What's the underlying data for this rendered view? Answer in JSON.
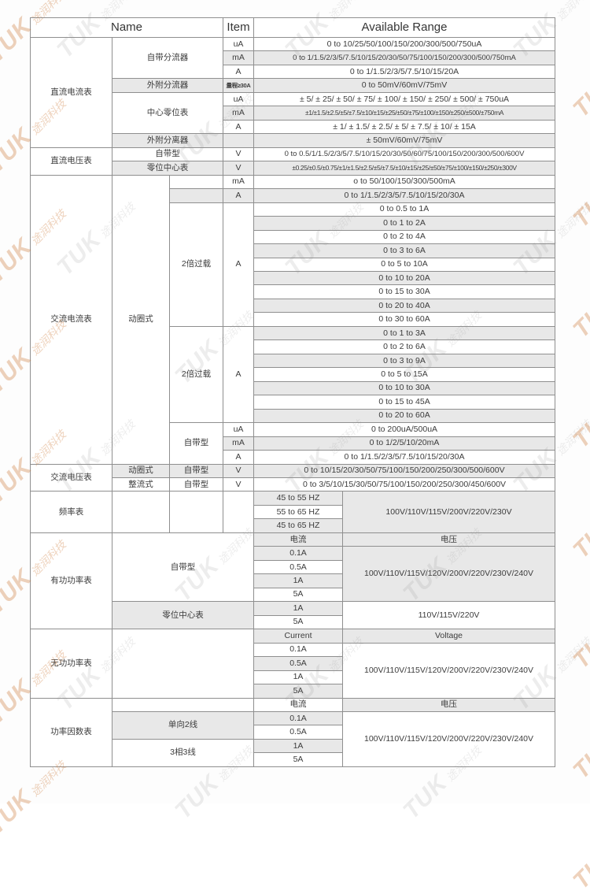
{
  "colors": {
    "shade": "#e8e8e8",
    "border": "#8f8f8f",
    "text": "#3c3c3c",
    "watermark_grey": "rgba(140,140,140,0.16)",
    "watermark_orange": "rgba(202,116,48,0.32)"
  },
  "watermark": {
    "brand": "TUK",
    "cn": "途润科技"
  },
  "table": {
    "header": [
      {
        "t": "Name",
        "span": 3
      },
      {
        "t": "Item",
        "span": 1
      },
      {
        "t": "Available Range",
        "span": 2
      }
    ],
    "rows": [
      [
        {
          "t": "直流电流表",
          "rows": 8
        },
        {
          "t": "自带分流器",
          "span": 2,
          "rows": 3
        },
        {
          "t": "uA"
        },
        {
          "t": "0 to 10/25/50/100/150/200/300/500/750uA",
          "span": 2
        }
      ],
      [
        {
          "t": "mA",
          "g": 1
        },
        {
          "t": "0 to 1/1.5/2/3/5/7.5/10/15/20/30/50/75/100/150/200/300/500/750mA",
          "span": 2,
          "g": 1,
          "cls": "sm"
        }
      ],
      [
        {
          "t": "A"
        },
        {
          "t": "0 to 1/1.5/2/3/5/7.5/10/15/20A",
          "span": 2
        }
      ],
      [
        {
          "t": "外附分流器",
          "span": 2,
          "g": 1
        },
        {
          "t": "量程≥30A",
          "g": 1,
          "cls": "tiny"
        },
        {
          "t": "0 to 50mV/60mV/75mV",
          "span": 2,
          "g": 1
        }
      ],
      [
        {
          "t": "中心零位表",
          "span": 2,
          "rows": 3
        },
        {
          "t": "uA"
        },
        {
          "t": "± 5/ ± 25/ ± 50/ ± 75/ ± 100/ ± 150/ ± 250/ ± 500/ ± 750uA",
          "span": 2
        }
      ],
      [
        {
          "t": "mA",
          "g": 1
        },
        {
          "t": "±1/±1.5/±2.5/±5/±7.5/±10/±15/±25/±50/±75/±100/±150/±250/±500/±750mA",
          "span": 2,
          "g": 1,
          "cls": "xs"
        }
      ],
      [
        {
          "t": "A"
        },
        {
          "t": "± 1/ ± 1.5/ ± 2.5/ ± 5/ ± 7.5/ ± 10/ ± 15A",
          "span": 2
        }
      ],
      [
        {
          "t": "外附分离器",
          "span": 2,
          "g": 1
        },
        {
          "t": "",
          "g": 1
        },
        {
          "t": "± 50mV/60mV/75mV",
          "span": 2,
          "g": 1
        }
      ],
      [
        {
          "t": "直流电压表",
          "rows": 2
        },
        {
          "t": "自带型",
          "span": 2
        },
        {
          "t": "V"
        },
        {
          "t": "0 to 0.5/1/1.5/2/3/5/7.5/10/15/20/30/50/60/75/100/150/200/300/500/600V",
          "span": 2,
          "cls": "sm"
        }
      ],
      [
        {
          "t": "零位中心表",
          "span": 2,
          "g": 1
        },
        {
          "t": "V",
          "g": 1
        },
        {
          "t": "±0.25/±0.5/±0.75/±1/±1.5/±2.5/±5/±7.5/±10/±15/±25/±50/±75/±100/±150/±250/±300V",
          "span": 2,
          "g": 1,
          "cls": "xs"
        }
      ],
      [
        {
          "t": "交流电流表",
          "rows": 21
        },
        {
          "t": "动圈式",
          "rows": 21
        },
        {
          "t": ""
        },
        {
          "t": "mA"
        },
        {
          "t": "o to 50/100/150/300/500mA",
          "span": 2
        }
      ],
      [
        {
          "t": "",
          "g": 1
        },
        {
          "t": "A",
          "g": 1
        },
        {
          "t": "0 to 1/1.5/2/3/5/7.5/10/15/20/30A",
          "span": 2,
          "g": 1
        }
      ],
      [
        {
          "t": "2倍过载",
          "rows": 9
        },
        {
          "t": "A",
          "rows": 9
        },
        {
          "t": "0 to 0.5 to 1A",
          "span": 2
        }
      ],
      [
        {
          "t": "0 to 1 to 2A",
          "span": 2,
          "g": 1
        }
      ],
      [
        {
          "t": "0 to 2 to 4A",
          "span": 2
        }
      ],
      [
        {
          "t": "0 to 3 to 6A",
          "span": 2,
          "g": 1
        }
      ],
      [
        {
          "t": "0 to 5 to 10A",
          "span": 2
        }
      ],
      [
        {
          "t": "0 to 10 to 20A",
          "span": 2,
          "g": 1
        }
      ],
      [
        {
          "t": "0 to 15 to 30A",
          "span": 2
        }
      ],
      [
        {
          "t": "0 to 20 to 40A",
          "span": 2,
          "g": 1
        }
      ],
      [
        {
          "t": "0 to 30 to 60A",
          "span": 2
        }
      ],
      [
        {
          "t": "2倍过载",
          "rows": 7
        },
        {
          "t": "A",
          "rows": 7
        },
        {
          "t": "0 to 1 to 3A",
          "span": 2,
          "g": 1
        }
      ],
      [
        {
          "t": "0 to 2 to 6A",
          "span": 2
        }
      ],
      [
        {
          "t": "0 to 3 to 9A",
          "span": 2,
          "g": 1
        }
      ],
      [
        {
          "t": "0 to 5 to 15A",
          "span": 2
        }
      ],
      [
        {
          "t": "0 to 10 to 30A",
          "span": 2,
          "g": 1
        }
      ],
      [
        {
          "t": "0 to 15 to 45A",
          "span": 2
        }
      ],
      [
        {
          "t": "0 to 20 to 60A",
          "span": 2,
          "g": 1
        }
      ],
      [
        {
          "t": "自带型",
          "rows": 3
        },
        {
          "t": "uA"
        },
        {
          "t": "0 to 200uA/500uA",
          "span": 2
        }
      ],
      [
        {
          "t": "mA",
          "g": 1
        },
        {
          "t": "0 to 1/2/5/10/20mA",
          "span": 2,
          "g": 1
        }
      ],
      [
        {
          "t": "A"
        },
        {
          "t": "0 to 1/1.5/2/3/5/7.5/10/15/20/30A",
          "span": 2
        }
      ],
      [
        {
          "t": "交流电压表",
          "rows": 2
        },
        {
          "t": "动圈式",
          "g": 1
        },
        {
          "t": "自带型",
          "g": 1
        },
        {
          "t": "V",
          "g": 1
        },
        {
          "t": "0 to 10/15/20/30/50/75/100/150/200/250/300/500/600V",
          "span": 2,
          "g": 1
        }
      ],
      [
        {
          "t": "整流式"
        },
        {
          "t": "自带型"
        },
        {
          "t": "V"
        },
        {
          "t": "0 to 3/5/10/15/30/50/75/100/150/200/250/300/450/600V",
          "span": 2
        }
      ],
      [
        {
          "t": "频率表",
          "rows": 3
        },
        {
          "t": "",
          "rows": 3
        },
        {
          "t": "",
          "rows": 3
        },
        {
          "t": "",
          "rows": 3
        },
        {
          "t": "45 to 55 HZ",
          "g": 1
        },
        {
          "t": "100V/110V/115V/200V/220V/230V",
          "rows": 3,
          "g": 1
        }
      ],
      [
        {
          "t": "55 to 65 HZ"
        }
      ],
      [
        {
          "t": "45 to 65 HZ",
          "g": 1
        }
      ],
      [
        {
          "t": "有功功率表",
          "rows": 7
        },
        {
          "t": "自带型",
          "span": 3,
          "rows": 5
        },
        {
          "t": "电流",
          "g": 1
        },
        {
          "t": "电压",
          "g": 1
        }
      ],
      [
        {
          "t": "0.1A",
          "g": 1
        },
        {
          "t": "100V/110V/115V/120V/200V/220V/230V/240V",
          "rows": 4,
          "g": 1
        }
      ],
      [
        {
          "t": "0.5A"
        }
      ],
      [
        {
          "t": "1A",
          "g": 1
        }
      ],
      [
        {
          "t": "5A"
        }
      ],
      [
        {
          "t": "零位中心表",
          "span": 3,
          "rows": 2,
          "g": 1
        },
        {
          "t": "1A",
          "g": 1
        },
        {
          "t": "110V/115V/220V",
          "rows": 2
        }
      ],
      [
        {
          "t": "5A"
        }
      ],
      [
        {
          "t": "无功功率表",
          "rows": 5
        },
        {
          "t": "",
          "span": 3,
          "rows": 5
        },
        {
          "t": "Current",
          "g": 1
        },
        {
          "t": "Voltage",
          "g": 1
        }
      ],
      [
        {
          "t": "0.1A"
        },
        {
          "t": "100V/110V/115V/120V/200V/220V/230V/240V",
          "rows": 4
        }
      ],
      [
        {
          "t": "0.5A",
          "g": 1
        }
      ],
      [
        {
          "t": "1A"
        }
      ],
      [
        {
          "t": "5A",
          "g": 1
        }
      ],
      [
        {
          "t": "功率因数表",
          "rows": 5
        },
        {
          "t": "",
          "span": 3
        },
        {
          "t": "电流"
        },
        {
          "t": "电压",
          "g": 1
        }
      ],
      [
        {
          "t": "单向2线",
          "span": 3,
          "rows": 2,
          "g": 1
        },
        {
          "t": "0.1A",
          "g": 1
        },
        {
          "t": "100V/110V/115V/120V/200V/220V/230V/240V",
          "rows": 4
        }
      ],
      [
        {
          "t": "0.5A"
        }
      ],
      [
        {
          "t": "3相3线",
          "span": 3,
          "rows": 2
        },
        {
          "t": "1A",
          "g": 1
        }
      ],
      [
        {
          "t": "5A"
        }
      ]
    ]
  }
}
